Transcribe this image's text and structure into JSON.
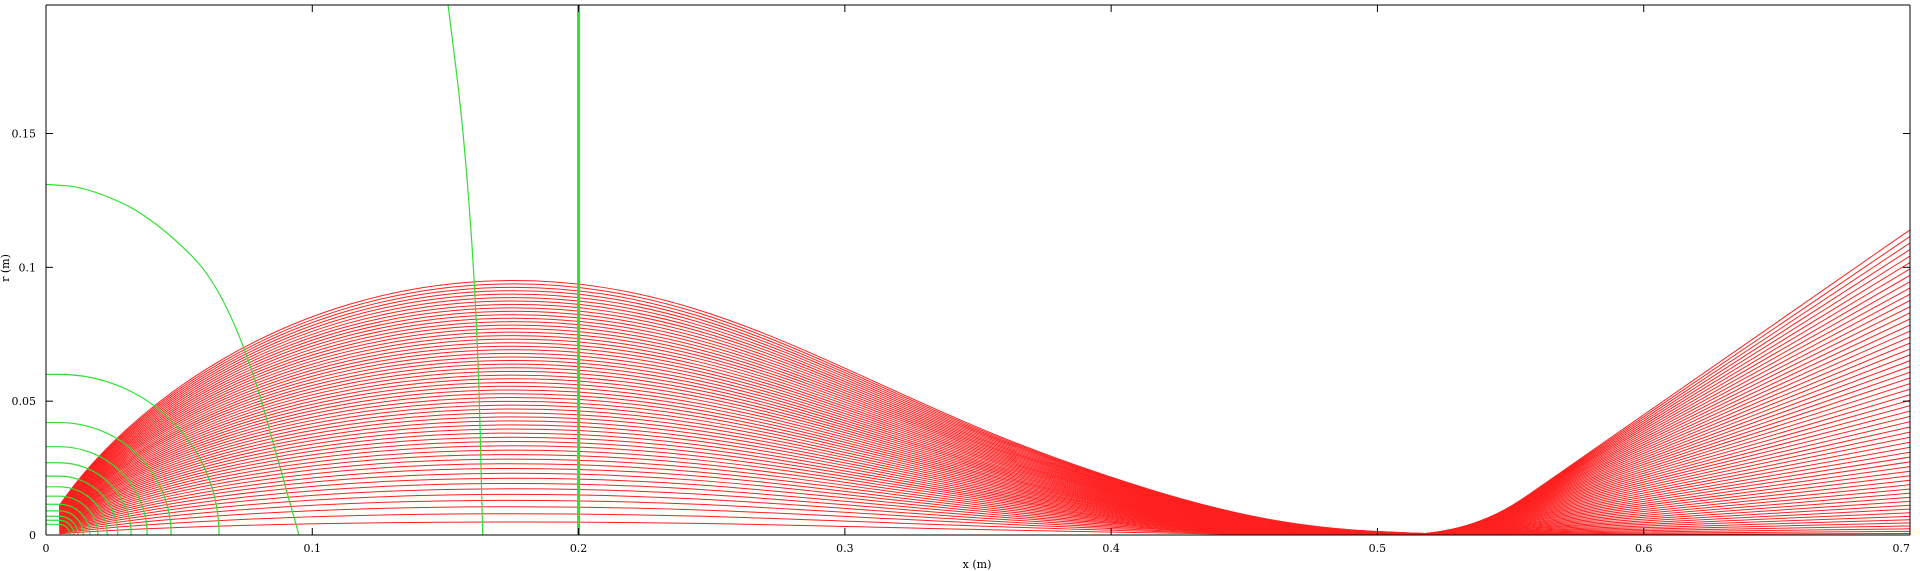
{
  "chart_data": {
    "type": "line",
    "title": "",
    "xlabel": "x (m)",
    "ylabel": "r (m)",
    "xlim": [
      0,
      0.7
    ],
    "ylim": [
      0,
      0.198
    ],
    "grid": false,
    "x_ticks": [
      {
        "value": 0,
        "label": "0"
      },
      {
        "value": 0.1,
        "label": "0.1"
      },
      {
        "value": 0.2,
        "label": "0.2"
      },
      {
        "value": 0.3,
        "label": "0.3"
      },
      {
        "value": 0.4,
        "label": "0.4"
      },
      {
        "value": 0.5,
        "label": "0.5"
      },
      {
        "value": 0.6,
        "label": "0.6"
      },
      {
        "value": 0.7,
        "label": "0.7"
      }
    ],
    "y_ticks": [
      {
        "value": 0,
        "label": "0"
      },
      {
        "value": 0.05,
        "label": "0.05"
      },
      {
        "value": 0.1,
        "label": "0.1"
      },
      {
        "value": 0.15,
        "label": "0.15"
      }
    ],
    "colors": {
      "trajectory": "#ff2020",
      "equipotential": "#33dd33",
      "axes": "#000000"
    },
    "trajectories": {
      "count": 60,
      "start_x": 0.005,
      "start_r_range": [
        0.0003,
        0.011
      ],
      "peak_x": 0.17,
      "peak_r_max": 0.095,
      "crossover_x": 0.52,
      "end_x": 0.7,
      "end_r_max": 0.114
    },
    "series": [
      {
        "type": "arc",
        "radius": 0.004
      },
      {
        "type": "arc",
        "radius": 0.0055
      },
      {
        "type": "arc",
        "radius": 0.007
      },
      {
        "type": "arc",
        "radius": 0.009
      },
      {
        "type": "arc",
        "radius": 0.0115
      },
      {
        "type": "arc",
        "radius": 0.0145
      },
      {
        "type": "arc",
        "radius": 0.018
      },
      {
        "type": "arc",
        "radius": 0.022
      },
      {
        "type": "arc",
        "radius": 0.027
      },
      {
        "type": "arc",
        "radius": 0.033
      },
      {
        "type": "arc",
        "radius": 0.042
      },
      {
        "type": "arc",
        "radius": 0.06
      },
      {
        "type": "curve",
        "points": [
          [
            0,
            0.131
          ],
          [
            0.015,
            0.13
          ],
          [
            0.04,
            0.119
          ],
          [
            0.07,
            0.089
          ],
          [
            0.095,
            0
          ]
        ]
      },
      {
        "type": "curve",
        "points": [
          [
            0.151,
            0.198
          ],
          [
            0.157,
            0.15
          ],
          [
            0.162,
            0.08
          ],
          [
            0.164,
            0
          ]
        ]
      },
      {
        "type": "vertical",
        "x": 0.2,
        "width": 3
      }
    ]
  }
}
